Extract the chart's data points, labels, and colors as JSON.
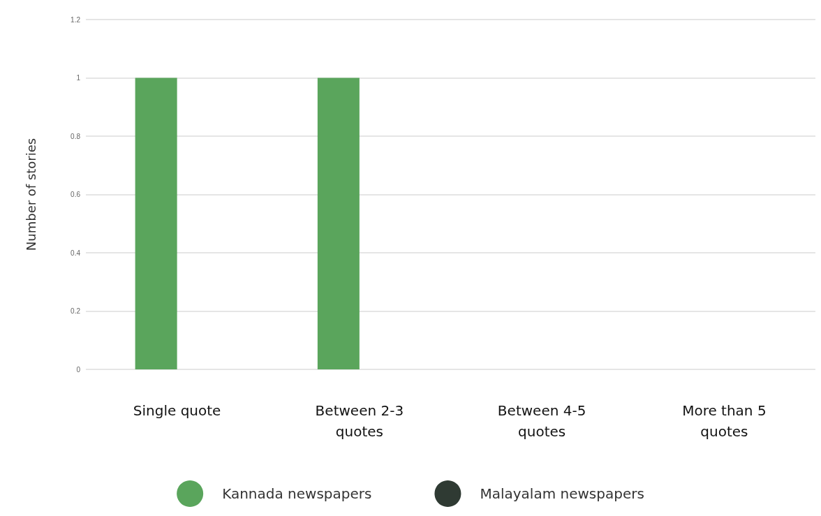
{
  "chart_data": {
    "type": "bar",
    "ylabel": "Number of stories",
    "categories": [
      "Single quote",
      "Between 2-3\nquotes",
      "Between 4-5\nquotes",
      "More than 5\nquotes"
    ],
    "series": [
      {
        "name": "Kannada newspapers",
        "color": "#5aa55c",
        "values": [
          1,
          1,
          0,
          0
        ]
      },
      {
        "name": "Malayalam newspapers",
        "color": "#2f3a33",
        "values": [
          0,
          0,
          0,
          0
        ]
      }
    ],
    "ylim": [
      0,
      1.2
    ],
    "yticks": [
      0,
      0.2,
      0.4,
      0.6,
      0.8,
      1,
      1.2
    ],
    "grid": "y",
    "legend": "bottom"
  }
}
